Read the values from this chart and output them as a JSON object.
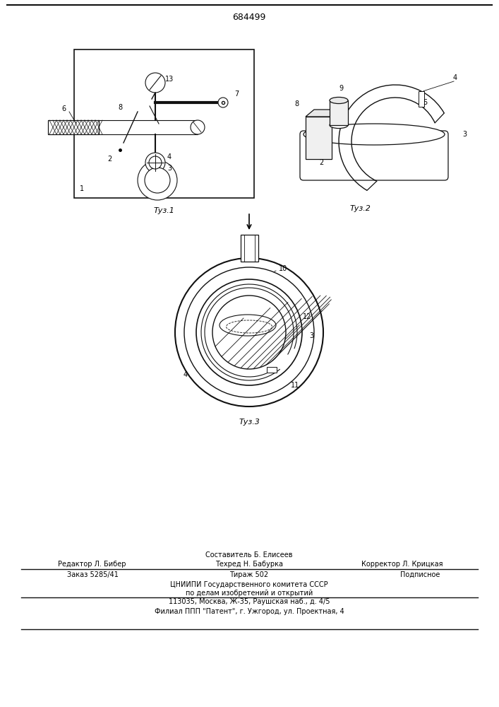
{
  "title": "684499",
  "fig1_caption": "Τуз.1",
  "fig2_caption": "Τуз.2",
  "fig3_caption": "Τуз.3",
  "footer_line1_center": "Составитель Б. Елисеев",
  "footer_line2_left": "Редактор Л. Бибер",
  "footer_line2_center": "Техред Н. Бабурка",
  "footer_line2_right": "Корректор Л. Крицкая",
  "footer_line3_left": "Заказ 5285/41",
  "footer_line3_center": "Тираж 502",
  "footer_line3_right": "Подписное",
  "footer_line4": "ЦНИИПИ Государственного комитета СССР",
  "footer_line5": "по делам изобретений и открытий",
  "footer_line6": "113035, Москва, Ж-35, Раушская наб., д. 4/5",
  "footer_line7": "Филиал ППП \"Патент\", г. Ужгород, ул. Проектная, 4",
  "bg_color": "#ffffff",
  "line_color": "#111111",
  "lw": 1.0
}
